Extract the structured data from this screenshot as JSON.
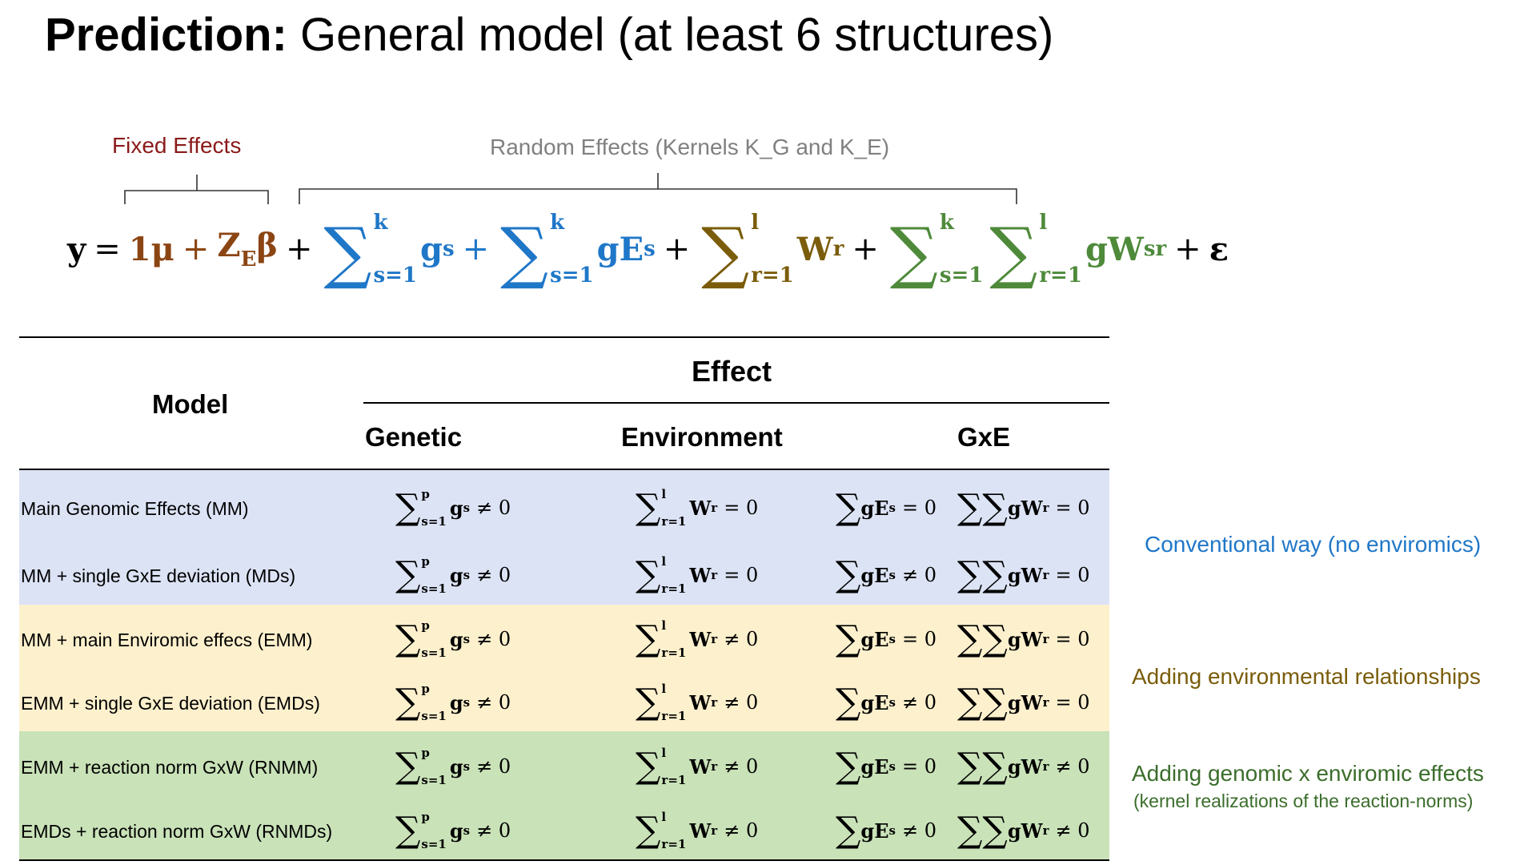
{
  "title": {
    "bold": "Prediction:",
    "rest": " General model (at least 6 structures)"
  },
  "labels": {
    "fixed": "Fixed Effects",
    "random": "Random Effects (Kernels K_G and K_E)"
  },
  "equation": {
    "y": "y",
    "eq": "=",
    "mu": "1μ",
    "plus": "+",
    "ZE": "Z",
    "E": "E",
    "beta": "β",
    "s1": "s=1",
    "r1": "r=1",
    "k": "k",
    "l": "l",
    "sum": "∑",
    "g": "g",
    "s": "s",
    "gE": "gE",
    "W": "W",
    "r": "r",
    "gW": "gW",
    "sr": "sr",
    "eps": "ε"
  },
  "table": {
    "model_header": "Model",
    "effect_header": "Effect",
    "col_headers": [
      "Genetic",
      "Environment",
      "GxE"
    ],
    "rows": [
      {
        "model": "Main Genomic Effects (MM)",
        "gen": {
          "up": "p",
          "lo": "s=1",
          "v": "g",
          "s": "s",
          "rel": "≠ 0"
        },
        "env": {
          "up": "l",
          "lo": "r=1",
          "v": "W",
          "s": "r",
          "rel": "= 0"
        },
        "gxe1": {
          "v": "gE",
          "s": "s",
          "rel": "= 0"
        },
        "gxe2": {
          "v": "gW",
          "s": "r",
          "rel": "= 0"
        }
      },
      {
        "model": "MM + single GxE deviation (MDs)",
        "gen": {
          "up": "p",
          "lo": "s=1",
          "v": "g",
          "s": "s",
          "rel": "≠ 0"
        },
        "env": {
          "up": "l",
          "lo": "r=1",
          "v": "W",
          "s": "r",
          "rel": "= 0"
        },
        "gxe1": {
          "v": "gE",
          "s": "s",
          "rel": "≠ 0"
        },
        "gxe2": {
          "v": "gW",
          "s": "r",
          "rel": "= 0"
        }
      },
      {
        "model": "MM + main Enviromic effecs (EMM)",
        "gen": {
          "up": "p",
          "lo": "s=1",
          "v": "g",
          "s": "s",
          "rel": "≠ 0"
        },
        "env": {
          "up": "l",
          "lo": "r=1",
          "v": "W",
          "s": "r",
          "rel": "≠ 0"
        },
        "gxe1": {
          "v": "gE",
          "s": "s",
          "rel": "= 0"
        },
        "gxe2": {
          "v": "gW",
          "s": "r",
          "rel": "= 0"
        }
      },
      {
        "model": "EMM + single GxE deviation (EMDs)",
        "gen": {
          "up": "p",
          "lo": "s=1",
          "v": "g",
          "s": "s",
          "rel": "≠ 0"
        },
        "env": {
          "up": "l",
          "lo": "r=1",
          "v": "W",
          "s": "r",
          "rel": "≠ 0"
        },
        "gxe1": {
          "v": "gE",
          "s": "s",
          "rel": "≠ 0"
        },
        "gxe2": {
          "v": "gW",
          "s": "r",
          "rel": "= 0"
        }
      },
      {
        "model": "EMM + reaction norm GxW (RNMM)",
        "gen": {
          "up": "p",
          "lo": "s=1",
          "v": "g",
          "s": "s",
          "rel": "≠ 0"
        },
        "env": {
          "up": "l",
          "lo": "r=1",
          "v": "W",
          "s": "r",
          "rel": "≠ 0"
        },
        "gxe1": {
          "v": "gE",
          "s": "s",
          "rel": "= 0"
        },
        "gxe2": {
          "v": "gW",
          "s": "r",
          "rel": "≠ 0"
        }
      },
      {
        "model": "EMDs + reaction norm GxW (RNMDs)",
        "gen": {
          "up": "p",
          "lo": "s=1",
          "v": "g",
          "s": "s",
          "rel": "≠ 0"
        },
        "env": {
          "up": "l",
          "lo": "r=1",
          "v": "W",
          "s": "r",
          "rel": "≠ 0"
        },
        "gxe1": {
          "v": "gE",
          "s": "s",
          "rel": "≠ 0"
        },
        "gxe2": {
          "v": "gW",
          "s": "r",
          "rel": "≠ 0"
        }
      }
    ]
  },
  "side_notes": {
    "conventional": "Conventional way (no enviromics)",
    "environmental": "Adding environmental relationships",
    "genomic": "Adding genomic x enviromic effects",
    "genomic_sub": "(kernel realizations of the reaction-norms)"
  },
  "colors": {
    "fixed": "#8B1A1A",
    "random": "#808080",
    "mu_beta": "#8B4513",
    "genomic_blue": "#1F77C8",
    "env_olive": "#7A5C0A",
    "gxw_green": "#4E8A3A",
    "band_blue": "#DCE3F5",
    "band_yellow": "#FDF0CD",
    "band_green": "#C9E2B8",
    "note_blue": "#1F77C8",
    "note_olive": "#7A5C0A",
    "note_green": "#3B6D2B"
  }
}
